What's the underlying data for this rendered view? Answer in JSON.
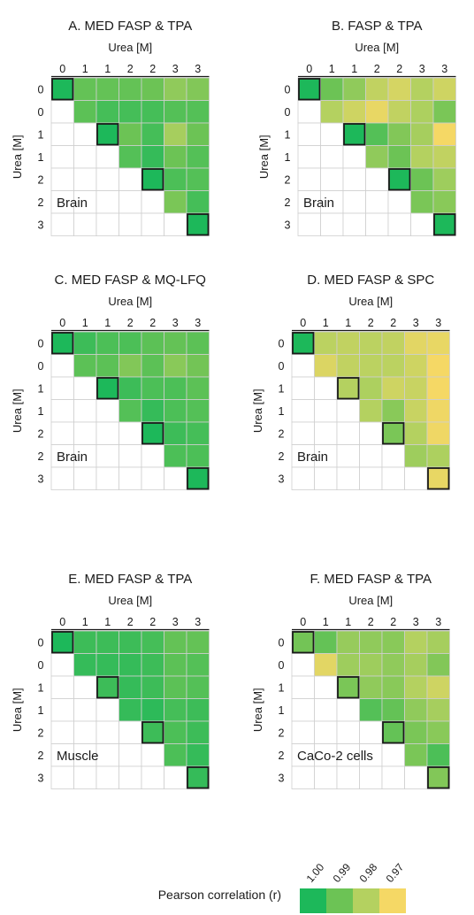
{
  "chart_data": [
    {
      "type": "heatmap",
      "title": "A.  MED FASP & TPA",
      "xlabel": "Urea [M]",
      "ylabel": "Urea [M]",
      "tick_labels": [
        "0",
        "1",
        "1",
        "2",
        "2",
        "3",
        "3"
      ],
      "row_tick_labels": [
        "0",
        "0",
        "1",
        "1",
        "2",
        "2",
        "3"
      ],
      "annotation": "Brain",
      "values": [
        [
          1.0,
          0.991,
          0.991,
          0.991,
          0.99,
          0.985,
          0.987
        ],
        [
          null,
          0.992,
          0.995,
          0.995,
          0.995,
          0.993,
          0.993
        ],
        [
          null,
          null,
          1.0,
          0.99,
          0.995,
          0.982,
          0.99
        ],
        [
          null,
          null,
          null,
          0.993,
          0.997,
          0.99,
          0.993
        ],
        [
          null,
          null,
          null,
          null,
          1.0,
          0.994,
          0.993
        ],
        [
          null,
          null,
          null,
          null,
          null,
          0.988,
          0.995
        ],
        [
          null,
          null,
          null,
          null,
          null,
          null,
          1.0
        ]
      ]
    },
    {
      "type": "heatmap",
      "title": "B.  FASP & TPA",
      "xlabel": "Urea [M]",
      "ylabel": "Urea [M]",
      "tick_labels": [
        "0",
        "1",
        "1",
        "2",
        "2",
        "3",
        "3"
      ],
      "row_tick_labels": [
        "0",
        "0",
        "1",
        "1",
        "2",
        "2",
        "3"
      ],
      "annotation": "Brain",
      "values": [
        [
          1.0,
          0.99,
          0.985,
          0.978,
          0.975,
          0.98,
          0.976
        ],
        [
          null,
          0.98,
          0.976,
          0.972,
          0.978,
          0.981,
          0.988
        ],
        [
          null,
          null,
          1.0,
          0.993,
          0.987,
          0.982,
          0.97
        ],
        [
          null,
          null,
          null,
          0.985,
          0.99,
          0.98,
          0.978
        ],
        [
          null,
          null,
          null,
          null,
          1.0,
          0.99,
          0.983
        ],
        [
          null,
          null,
          null,
          null,
          null,
          0.988,
          0.986
        ],
        [
          null,
          null,
          null,
          null,
          null,
          null,
          1.0
        ]
      ]
    },
    {
      "type": "heatmap",
      "title": "C.  MED FASP & MQ-LFQ",
      "xlabel": "Urea [M]",
      "ylabel": "Urea [M]",
      "tick_labels": [
        "0",
        "1",
        "1",
        "2",
        "2",
        "3",
        "3"
      ],
      "row_tick_labels": [
        "0",
        "0",
        "1",
        "1",
        "2",
        "2",
        "3"
      ],
      "annotation": "Brain",
      "values": [
        [
          1.0,
          0.996,
          0.994,
          0.994,
          0.992,
          0.991,
          0.992
        ],
        [
          null,
          0.992,
          0.992,
          0.987,
          0.992,
          0.986,
          0.989
        ],
        [
          null,
          null,
          1.0,
          0.996,
          0.994,
          0.994,
          0.992
        ],
        [
          null,
          null,
          null,
          0.993,
          0.997,
          0.994,
          0.993
        ],
        [
          null,
          null,
          null,
          null,
          1.0,
          0.996,
          0.995
        ],
        [
          null,
          null,
          null,
          null,
          null,
          0.994,
          0.994
        ],
        [
          null,
          null,
          null,
          null,
          null,
          null,
          1.0
        ]
      ]
    },
    {
      "type": "heatmap",
      "title": "D.  MED FASP & SPC",
      "xlabel": "Urea [M]",
      "ylabel": "Urea [M]",
      "tick_labels": [
        "0",
        "1",
        "1",
        "2",
        "2",
        "3",
        "3"
      ],
      "row_tick_labels": [
        "0",
        "0",
        "1",
        "1",
        "2",
        "2",
        "3"
      ],
      "annotation": "Brain",
      "values": [
        [
          1.0,
          0.979,
          0.978,
          0.979,
          0.978,
          0.973,
          0.972
        ],
        [
          null,
          0.974,
          0.978,
          0.979,
          0.979,
          0.976,
          0.97
        ],
        [
          null,
          null,
          0.98,
          0.981,
          0.976,
          0.977,
          0.97
        ],
        [
          null,
          null,
          null,
          0.98,
          0.986,
          0.977,
          0.971
        ],
        [
          null,
          null,
          null,
          null,
          0.988,
          0.98,
          0.971
        ],
        [
          null,
          null,
          null,
          null,
          null,
          0.983,
          0.981
        ],
        [
          null,
          null,
          null,
          null,
          null,
          null,
          0.972
        ]
      ]
    },
    {
      "type": "heatmap",
      "title": "E.  MED FASP & TPA",
      "xlabel": "Urea [M]",
      "ylabel": "Urea [M]",
      "tick_labels": [
        "0",
        "1",
        "1",
        "2",
        "2",
        "3",
        "3"
      ],
      "row_tick_labels": [
        "0",
        "0",
        "1",
        "1",
        "2",
        "2",
        "3"
      ],
      "annotation": "Muscle",
      "values": [
        [
          1.0,
          0.996,
          0.996,
          0.996,
          0.995,
          0.991,
          0.991
        ],
        [
          null,
          0.997,
          0.997,
          0.997,
          0.996,
          0.992,
          0.993
        ],
        [
          null,
          null,
          0.996,
          0.997,
          0.996,
          0.992,
          0.993
        ],
        [
          null,
          null,
          null,
          0.997,
          0.998,
          0.995,
          0.996
        ],
        [
          null,
          null,
          null,
          null,
          0.996,
          0.994,
          0.996
        ],
        [
          null,
          null,
          null,
          null,
          null,
          0.994,
          0.997
        ],
        [
          null,
          null,
          null,
          null,
          null,
          null,
          0.997
        ]
      ]
    },
    {
      "type": "heatmap",
      "title": "F.  MED FASP & TPA",
      "xlabel": "Urea [M]",
      "ylabel": "Urea [M]",
      "tick_labels": [
        "0",
        "1",
        "1",
        "2",
        "2",
        "3",
        "3"
      ],
      "row_tick_labels": [
        "0",
        "0",
        "1",
        "1",
        "2",
        "2",
        "3"
      ],
      "annotation": "CaCo-2 cells",
      "values": [
        [
          0.989,
          0.991,
          0.984,
          0.985,
          0.986,
          0.98,
          0.982
        ],
        [
          null,
          0.973,
          0.983,
          0.983,
          0.985,
          0.982,
          0.987
        ],
        [
          null,
          null,
          0.988,
          0.985,
          0.986,
          0.98,
          0.976
        ],
        [
          null,
          null,
          null,
          0.993,
          0.991,
          0.985,
          0.982
        ],
        [
          null,
          null,
          null,
          null,
          0.991,
          0.988,
          0.986
        ],
        [
          null,
          null,
          null,
          null,
          null,
          0.988,
          0.994
        ],
        [
          null,
          null,
          null,
          null,
          null,
          null,
          0.987
        ]
      ]
    }
  ],
  "legend": {
    "title": "Pearson correlation (r)",
    "ticks": [
      "1.00",
      "0.99",
      "0.98",
      "0.97"
    ],
    "colors": [
      "#1db85a",
      "#6cc355",
      "#b4d160",
      "#f5d865"
    ]
  },
  "highlight": {
    "cells": [
      [
        0,
        0
      ],
      [
        2,
        2
      ],
      [
        4,
        4
      ],
      [
        6,
        6
      ]
    ],
    "border_color": "#1a1a1a"
  },
  "colors": {
    "empty_cell": "#ffffff",
    "grid_line": "#cfcfcf",
    "text": "#1a1a1a"
  }
}
